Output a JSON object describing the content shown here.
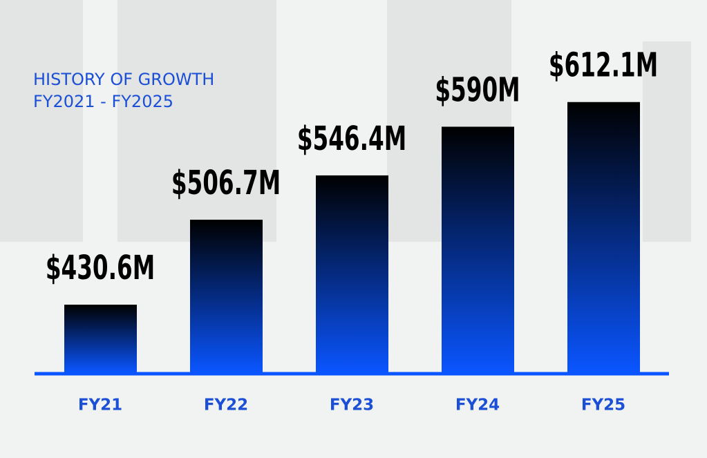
{
  "chart_data": {
    "type": "bar",
    "title": "HISTORY OF GROWTH",
    "subtitle": "FY2021 - FY2025",
    "categories": [
      "FY21",
      "FY22",
      "FY23",
      "FY24",
      "FY25"
    ],
    "values": [
      430.6,
      506.7,
      546.4,
      590,
      612.1
    ],
    "value_labels": [
      "$430.6M",
      "$506.7M",
      "$546.4M",
      "$590M",
      "$612.1M"
    ],
    "color": "#0a55ff",
    "ylim": [
      370,
      680
    ]
  }
}
